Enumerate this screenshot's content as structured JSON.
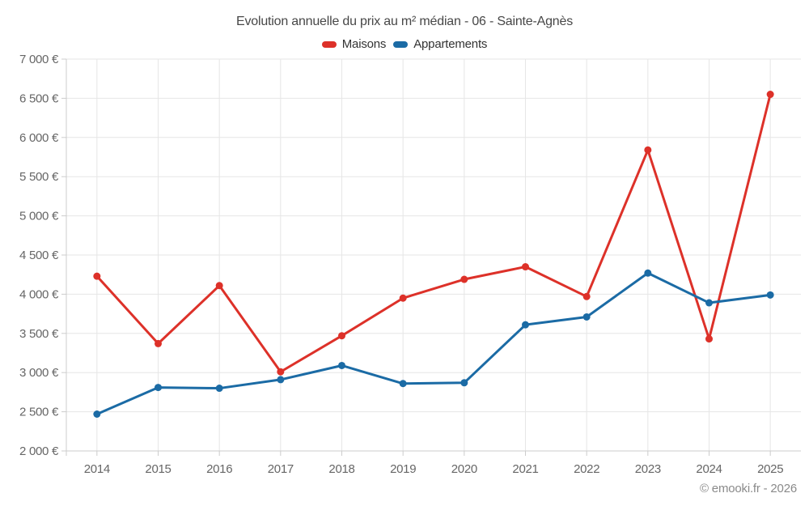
{
  "header": {
    "title": "Evolution annuelle du prix au m² médian - 06 - Sainte-Agnès"
  },
  "footer": {
    "copyright": "© emooki.fr - 2026"
  },
  "colors": {
    "maisons": "#dd3129",
    "appartements": "#1b6ba5",
    "gridline": "#e6e6e6",
    "axis_line": "#cccccc",
    "tick_label": "#666666",
    "title_text": "#474747",
    "legend_text": "#333333",
    "copyright_text": "#8a8a8a"
  },
  "chart_data": {
    "type": "line",
    "title": "Evolution annuelle du prix au m² médian - 06 - Sainte-Agnès",
    "xlabel": "",
    "ylabel": "",
    "categories": [
      "2014",
      "2015",
      "2016",
      "2017",
      "2018",
      "2019",
      "2020",
      "2021",
      "2022",
      "2023",
      "2024",
      "2025"
    ],
    "series": [
      {
        "name": "Maisons",
        "color": "#dd3129",
        "values": [
          4230,
          3370,
          4110,
          3010,
          3470,
          3950,
          4190,
          4350,
          3970,
          5840,
          3430,
          6550
        ]
      },
      {
        "name": "Appartements",
        "color": "#1b6ba5",
        "values": [
          2470,
          2810,
          2800,
          2910,
          3090,
          2860,
          2870,
          3610,
          3710,
          4270,
          3890,
          3990
        ]
      }
    ],
    "ylim": [
      2000,
      7000
    ],
    "ytick_step": 500,
    "ytick_labels": [
      "2 000 €",
      "2 500 €",
      "3 000 €",
      "3 500 €",
      "4 000 €",
      "4 500 €",
      "5 000 €",
      "5 500 €",
      "6 000 €",
      "6 500 €",
      "7 000 €"
    ],
    "grid": true,
    "legend_position": "top-center",
    "marker": "circle"
  }
}
